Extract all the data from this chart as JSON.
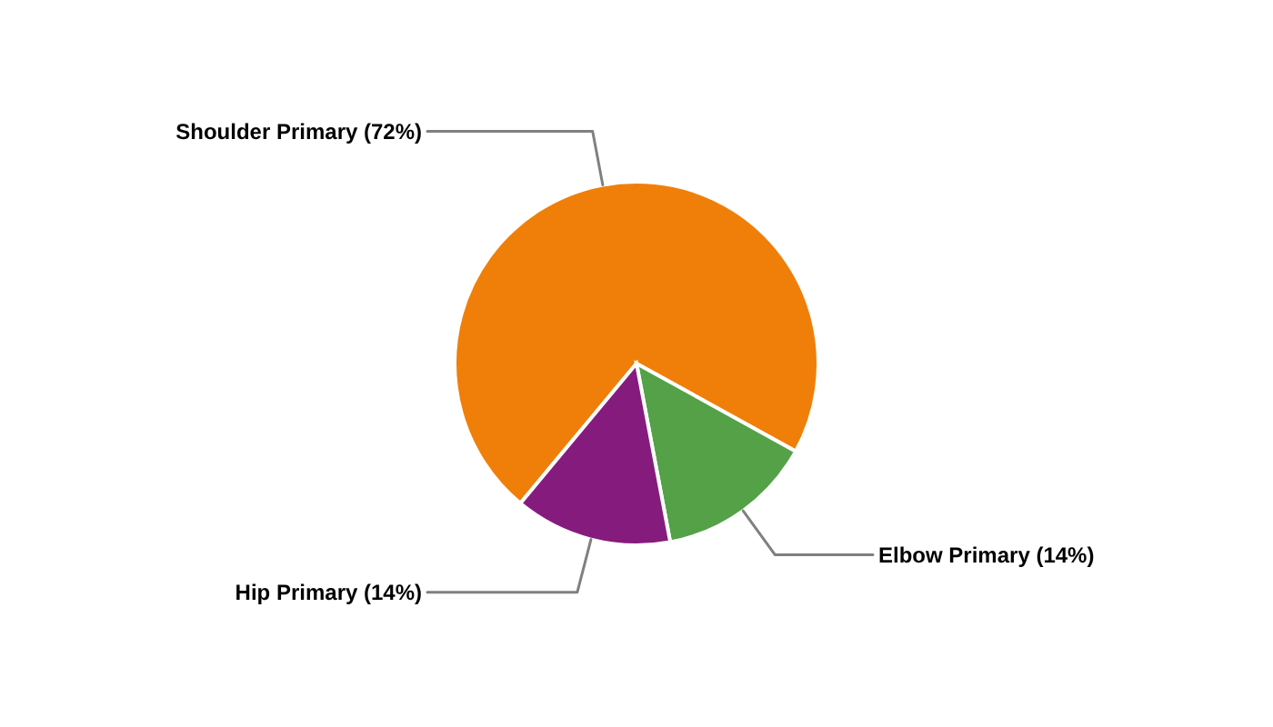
{
  "chart_data": {
    "type": "pie",
    "categories": [
      "Shoulder Primary",
      "Elbow Primary",
      "Hip Primary"
    ],
    "values": [
      72,
      14,
      14
    ],
    "colors": [
      "#f07f09",
      "#54a147",
      "#861b7e"
    ],
    "value_labels": [
      "(72%)",
      "(14%)",
      "(14%)"
    ]
  }
}
